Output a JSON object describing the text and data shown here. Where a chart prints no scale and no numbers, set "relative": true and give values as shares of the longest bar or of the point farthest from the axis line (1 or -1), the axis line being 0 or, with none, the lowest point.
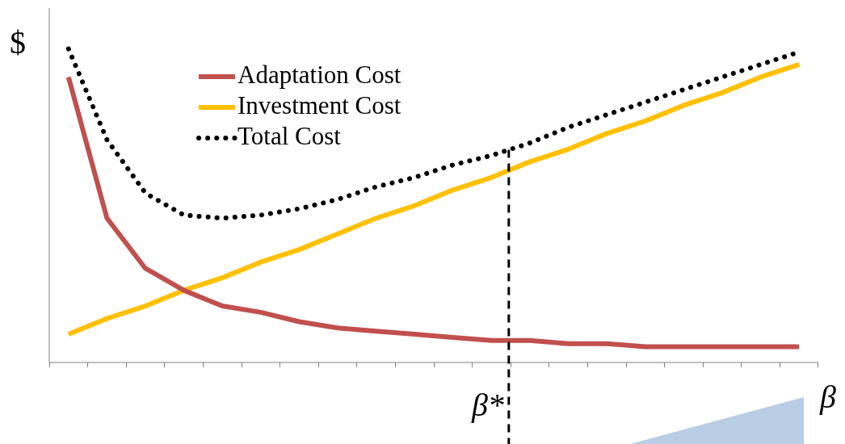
{
  "chart_data": {
    "type": "line",
    "relative": true,
    "ylabel": "$",
    "xlabel": "β",
    "categories": [
      null,
      null,
      null,
      null,
      null,
      null,
      null,
      null,
      null,
      null,
      null,
      null,
      null,
      null,
      null,
      null,
      null,
      null,
      null,
      null
    ],
    "series": [
      {
        "name": "Adaptation Cost",
        "color": "#c0504d",
        "line_style": "solid",
        "values": [
          0.91,
          0.46,
          0.3,
          0.23,
          0.18,
          0.16,
          0.13,
          0.11,
          0.1,
          0.09,
          0.08,
          0.07,
          0.07,
          0.06,
          0.06,
          0.05,
          0.05,
          0.05,
          0.05,
          0.05
        ]
      },
      {
        "name": "Investment Cost",
        "color": "#ffc000",
        "line_style": "solid",
        "values": [
          0.09,
          0.14,
          0.18,
          0.23,
          0.27,
          0.32,
          0.36,
          0.41,
          0.46,
          0.5,
          0.55,
          0.59,
          0.64,
          0.68,
          0.73,
          0.77,
          0.82,
          0.86,
          0.91,
          0.95
        ]
      },
      {
        "name": "Total Cost",
        "color": "#000000",
        "line_style": "dotted",
        "values": [
          1,
          0.71,
          0.54,
          0.47,
          0.46,
          0.47,
          0.49,
          0.52,
          0.56,
          0.59,
          0.63,
          0.66,
          0.7,
          0.75,
          0.79,
          0.83,
          0.87,
          0.91,
          0.95,
          0.99
        ]
      }
    ],
    "annotations": [
      "β*"
    ],
    "legend": "top left",
    "marker": "none",
    "grid": false
  }
}
